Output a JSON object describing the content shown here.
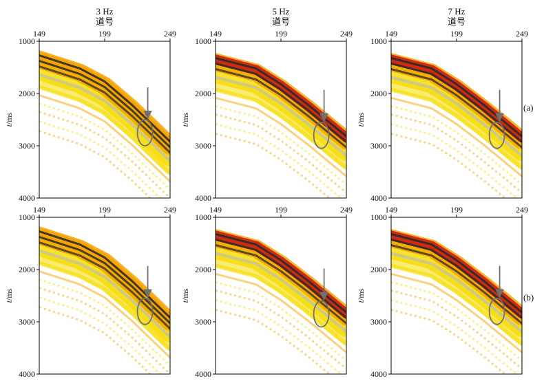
{
  "figure": {
    "x_label": "道号",
    "y_label_var": "t",
    "y_label_unit": "/ms",
    "columns": [
      "3 Hz",
      "5 Hz",
      "7 Hz"
    ],
    "rows": [
      "(a)",
      "(b)"
    ]
  },
  "colors": {
    "frame": "#000000",
    "yellow": "#f5dc00",
    "orange": "#f5a300",
    "red": "#c81e0f",
    "dark": "#2a2a2a",
    "grey": "#bdbdbd",
    "marker": "#707070"
  },
  "chart_data": [
    {
      "type": "heatmap",
      "title": "3 Hz",
      "row": "(a)",
      "xlabel": "道号",
      "ylabel": "t/ms",
      "xlim": [
        149,
        249
      ],
      "ylim": [
        1000,
        4000
      ],
      "x_ticks": [
        149,
        199,
        249
      ],
      "y_ticks": [
        1000,
        2000,
        3000,
        4000
      ],
      "event_arrival_ms": [
        [
          149,
          1350
        ],
        [
          180,
          1600
        ],
        [
          199,
          1850
        ],
        [
          220,
          2300
        ],
        [
          249,
          3000
        ]
      ],
      "highlight": {
        "trace": 233,
        "time_ms": 2750,
        "label": "ellipse + arrow"
      }
    },
    {
      "type": "heatmap",
      "title": "5 Hz",
      "row": "(a)",
      "xlabel": "道号",
      "ylabel": "t/ms",
      "xlim": [
        149,
        249
      ],
      "ylim": [
        1000,
        4000
      ],
      "x_ticks": [
        149,
        199,
        249
      ],
      "y_ticks": [
        1000,
        2000,
        3000,
        4000
      ],
      "event_arrival_ms": [
        [
          149,
          1400
        ],
        [
          180,
          1600
        ],
        [
          199,
          1900
        ],
        [
          220,
          2300
        ],
        [
          249,
          2900
        ]
      ],
      "highlight": {
        "trace": 233,
        "time_ms": 2800,
        "label": "ellipse + arrow"
      }
    },
    {
      "type": "heatmap",
      "title": "7 Hz",
      "row": "(a)",
      "xlabel": "道号",
      "ylabel": "t/ms",
      "xlim": [
        149,
        249
      ],
      "ylim": [
        1000,
        4000
      ],
      "x_ticks": [
        149,
        199,
        249
      ],
      "y_ticks": [
        1000,
        2000,
        3000,
        4000
      ],
      "event_arrival_ms": [
        [
          149,
          1400
        ],
        [
          180,
          1600
        ],
        [
          199,
          1900
        ],
        [
          220,
          2300
        ],
        [
          249,
          2900
        ]
      ],
      "highlight": {
        "trace": 233,
        "time_ms": 2800,
        "label": "ellipse + arrow"
      }
    },
    {
      "type": "heatmap",
      "title": "3 Hz",
      "row": "(b)",
      "xlabel": "道号",
      "ylabel": "t/ms",
      "xlim": [
        149,
        249
      ],
      "ylim": [
        1000,
        4000
      ],
      "x_ticks": [
        149,
        199,
        249
      ],
      "y_ticks": [
        1000,
        2000,
        3000,
        4000
      ],
      "event_arrival_ms": [
        [
          149,
          1350
        ],
        [
          180,
          1600
        ],
        [
          199,
          1850
        ],
        [
          220,
          2300
        ],
        [
          249,
          3000
        ]
      ],
      "highlight": {
        "trace": 233,
        "time_ms": 2800,
        "label": "ellipse + arrow"
      }
    },
    {
      "type": "heatmap",
      "title": "5 Hz",
      "row": "(b)",
      "xlabel": "道号",
      "ylabel": "t/ms",
      "xlim": [
        149,
        249
      ],
      "ylim": [
        1000,
        4000
      ],
      "x_ticks": [
        149,
        199,
        249
      ],
      "y_ticks": [
        1000,
        2000,
        3000,
        4000
      ],
      "event_arrival_ms": [
        [
          149,
          1400
        ],
        [
          180,
          1600
        ],
        [
          199,
          1900
        ],
        [
          220,
          2300
        ],
        [
          249,
          2900
        ]
      ],
      "highlight": {
        "trace": 233,
        "time_ms": 2850,
        "label": "ellipse + arrow"
      }
    },
    {
      "type": "heatmap",
      "title": "7 Hz",
      "row": "(b)",
      "xlabel": "道号",
      "ylabel": "t/ms",
      "xlim": [
        149,
        249
      ],
      "ylim": [
        1000,
        4000
      ],
      "x_ticks": [
        149,
        199,
        249
      ],
      "y_ticks": [
        1000,
        2000,
        3000,
        4000
      ],
      "event_arrival_ms": [
        [
          149,
          1400
        ],
        [
          180,
          1600
        ],
        [
          199,
          1900
        ],
        [
          220,
          2300
        ],
        [
          249,
          2900
        ]
      ],
      "highlight": {
        "trace": 233,
        "time_ms": 2800,
        "label": "ellipse + arrow"
      }
    }
  ]
}
